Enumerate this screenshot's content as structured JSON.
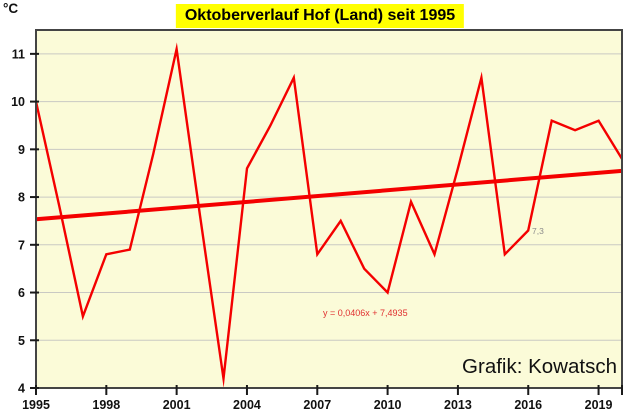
{
  "chart_data": {
    "type": "line",
    "title": "Oktoberverlauf Hof (Land) seit 1995",
    "y_unit": "°C",
    "credit": "Grafik: Kowatsch",
    "x": [
      1995,
      1996,
      1997,
      1998,
      1999,
      2000,
      2001,
      2002,
      2003,
      2004,
      2005,
      2006,
      2007,
      2008,
      2009,
      2010,
      2011,
      2012,
      2013,
      2014,
      2015,
      2016,
      2017,
      2018,
      2019,
      2020
    ],
    "values": [
      10.0,
      7.8,
      5.5,
      6.8,
      6.9,
      8.9,
      11.1,
      7.6,
      4.2,
      8.6,
      9.5,
      10.5,
      6.8,
      7.5,
      6.5,
      6.0,
      7.9,
      6.8,
      8.6,
      10.5,
      6.8,
      7.3,
      9.6,
      9.4,
      9.6,
      8.8
    ],
    "x_ticks": [
      1995,
      1998,
      2001,
      2004,
      2007,
      2010,
      2013,
      2016,
      2019
    ],
    "y_ticks": [
      4,
      5,
      6,
      7,
      8,
      9,
      10,
      11
    ],
    "y_gridlines": [
      5,
      6,
      7,
      8,
      9,
      10,
      11
    ],
    "x_range": [
      1995,
      2020
    ],
    "y_range": [
      4,
      11.5
    ],
    "grid": "horizontal-only",
    "legend": "none",
    "trend": {
      "label": "y = 0,0406x + 7,4935",
      "slope": 0.0406,
      "intercept": 7.4935
    },
    "annotation": {
      "text": "7,3",
      "year": 2016,
      "value": 7.3
    },
    "colors": {
      "line": "#f40000",
      "trend": "#f40000",
      "plot_bg": "#fbfbd8",
      "title_bg": "#ffff00",
      "grid": "#c9c9c3",
      "border": "#444444",
      "tick": "#1a1a1a",
      "equation_text": "#e03030",
      "annotation_text": "#8c8c8c"
    }
  }
}
